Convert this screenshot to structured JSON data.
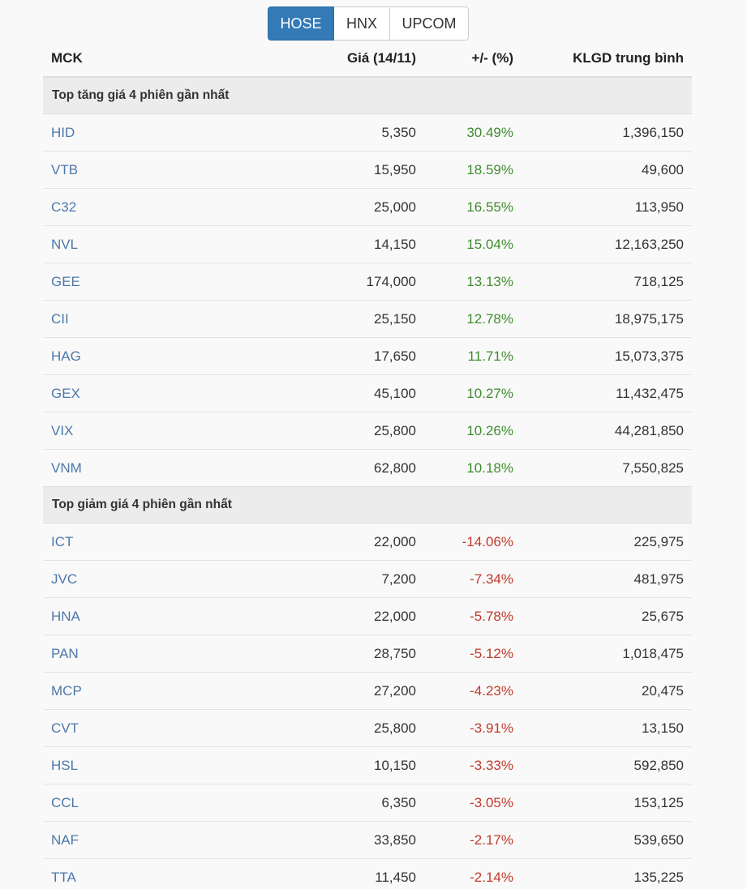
{
  "exchange_tabs": [
    {
      "label": "HOSE",
      "active": true
    },
    {
      "label": "HNX",
      "active": false
    },
    {
      "label": "UPCOM",
      "active": false
    }
  ],
  "table": {
    "headers": {
      "mck": "MCK",
      "price": "Giá (14/11)",
      "change": "+/- (%)",
      "volume": "KLGD trung bình"
    },
    "groups": [
      {
        "title": "Top tăng giá 4 phiên gần nhất",
        "direction": "up",
        "rows": [
          {
            "mck": "HID",
            "price": "5,350",
            "change": "30.49%",
            "volume": "1,396,150"
          },
          {
            "mck": "VTB",
            "price": "15,950",
            "change": "18.59%",
            "volume": "49,600"
          },
          {
            "mck": "C32",
            "price": "25,000",
            "change": "16.55%",
            "volume": "113,950"
          },
          {
            "mck": "NVL",
            "price": "14,150",
            "change": "15.04%",
            "volume": "12,163,250"
          },
          {
            "mck": "GEE",
            "price": "174,000",
            "change": "13.13%",
            "volume": "718,125"
          },
          {
            "mck": "CII",
            "price": "25,150",
            "change": "12.78%",
            "volume": "18,975,175"
          },
          {
            "mck": "HAG",
            "price": "17,650",
            "change": "11.71%",
            "volume": "15,073,375"
          },
          {
            "mck": "GEX",
            "price": "45,100",
            "change": "10.27%",
            "volume": "11,432,475"
          },
          {
            "mck": "VIX",
            "price": "25,800",
            "change": "10.26%",
            "volume": "44,281,850"
          },
          {
            "mck": "VNM",
            "price": "62,800",
            "change": "10.18%",
            "volume": "7,550,825"
          }
        ]
      },
      {
        "title": "Top giảm giá 4 phiên gần nhất",
        "direction": "down",
        "rows": [
          {
            "mck": "ICT",
            "price": "22,000",
            "change": "-14.06%",
            "volume": "225,975"
          },
          {
            "mck": "JVC",
            "price": "7,200",
            "change": "-7.34%",
            "volume": "481,975"
          },
          {
            "mck": "HNA",
            "price": "22,000",
            "change": "-5.78%",
            "volume": "25,675"
          },
          {
            "mck": "PAN",
            "price": "28,750",
            "change": "-5.12%",
            "volume": "1,018,475"
          },
          {
            "mck": "MCP",
            "price": "27,200",
            "change": "-4.23%",
            "volume": "20,475"
          },
          {
            "mck": "CVT",
            "price": "25,800",
            "change": "-3.91%",
            "volume": "13,150"
          },
          {
            "mck": "HSL",
            "price": "10,150",
            "change": "-3.33%",
            "volume": "592,850"
          },
          {
            "mck": "CCL",
            "price": "6,350",
            "change": "-3.05%",
            "volume": "153,125"
          },
          {
            "mck": "NAF",
            "price": "33,850",
            "change": "-2.17%",
            "volume": "539,650"
          },
          {
            "mck": "TTA",
            "price": "11,450",
            "change": "-2.14%",
            "volume": "135,225"
          }
        ]
      }
    ]
  },
  "colors": {
    "active_tab": "#337ab7",
    "ticker_link": "#4d78a8",
    "up": "#3f8c2e",
    "down": "#c0392b",
    "group_bg": "#ececec"
  }
}
